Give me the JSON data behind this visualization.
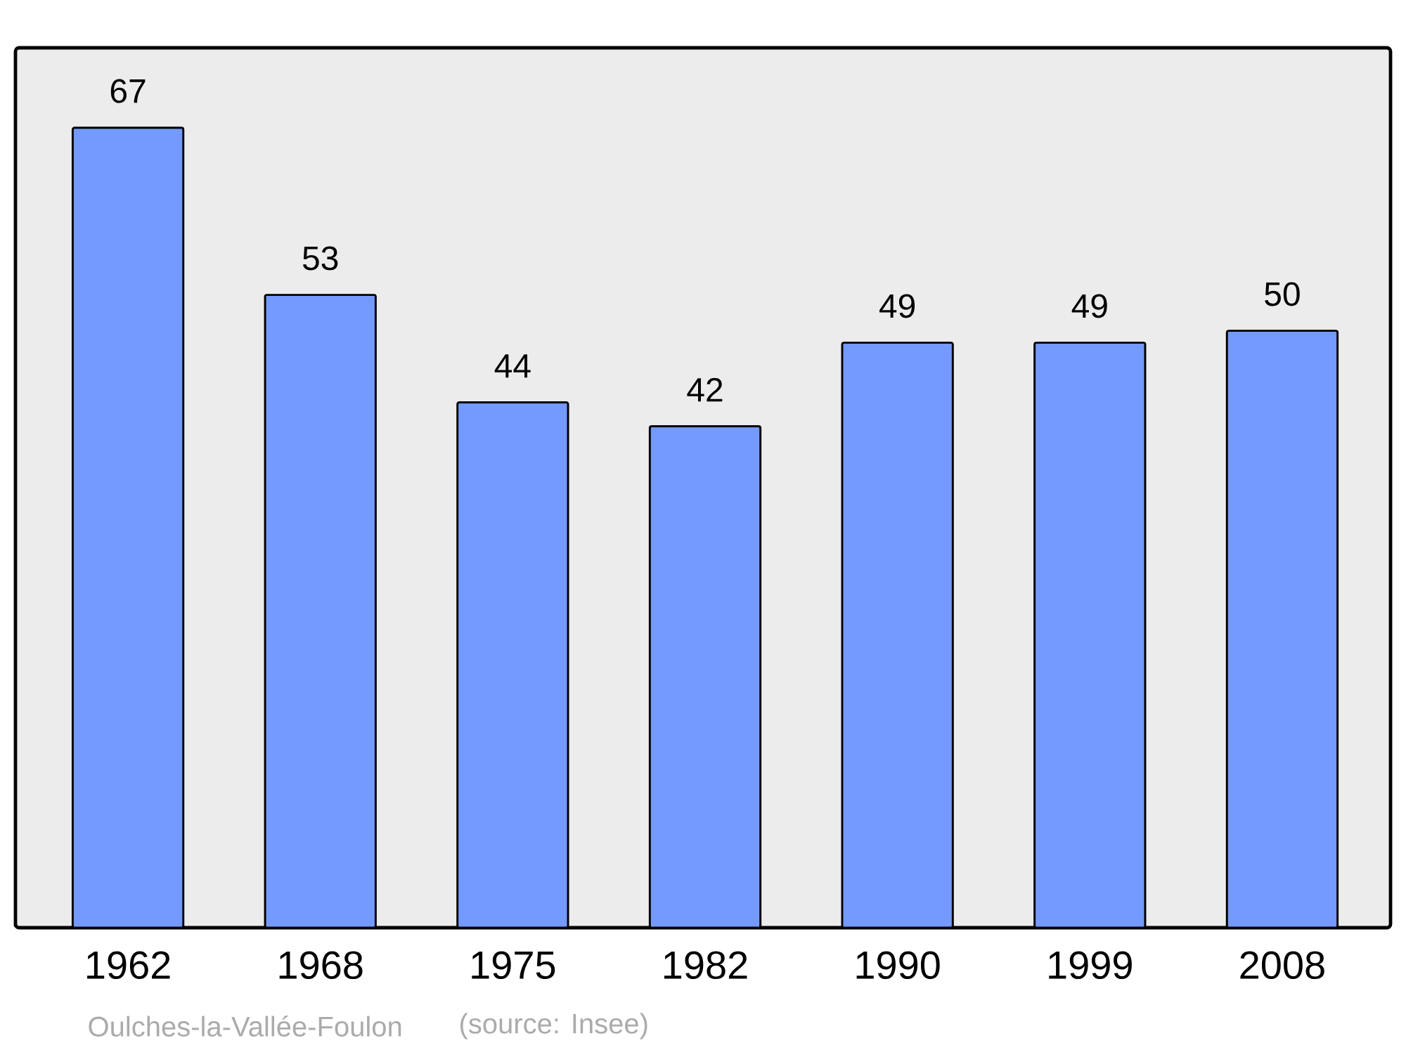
{
  "chart_data": {
    "type": "bar",
    "categories": [
      "1962",
      "1968",
      "1975",
      "1982",
      "1990",
      "1999",
      "2008"
    ],
    "values": [
      67,
      53,
      44,
      42,
      49,
      49,
      50
    ],
    "color": "#7499ff",
    "data_labels": true,
    "annotations": [
      "Oulches-la-Vallée-Foulon",
      "(source: Insee)"
    ]
  }
}
